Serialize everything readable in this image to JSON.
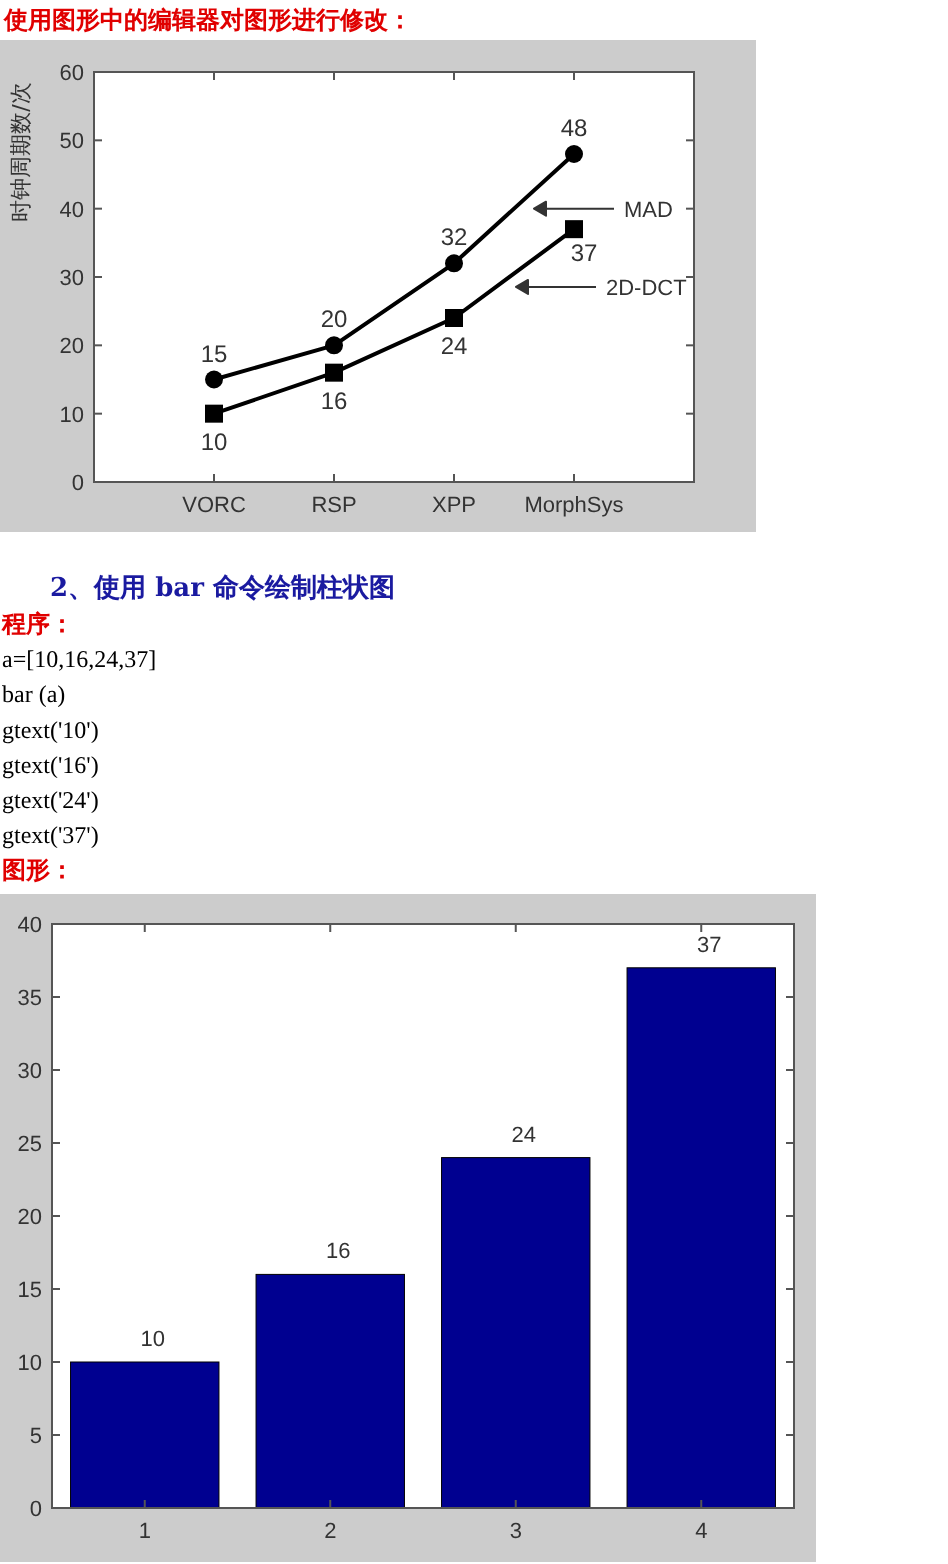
{
  "chart_data": [
    {
      "type": "line",
      "title": "使用图形中的编辑器对图形进行修改：",
      "ylabel": "时钟周期数/次",
      "categories": [
        "VORC",
        "RSP",
        "XPP",
        "MorphSys"
      ],
      "series": [
        {
          "name": "MAD",
          "color": "#000000",
          "marker": "circle",
          "values": [
            15,
            20,
            32,
            48
          ]
        },
        {
          "name": "2D-DCT",
          "color": "#000000",
          "marker": "square",
          "values": [
            10,
            16,
            24,
            37
          ]
        }
      ],
      "ylim": [
        0,
        60
      ],
      "yticks": [
        0,
        10,
        20,
        30,
        40,
        50,
        60
      ],
      "data_labels": true,
      "legend": "right"
    },
    {
      "type": "bar",
      "title": "2、使用 bar 命令绘制柱状图",
      "annotations": [
        "程序：",
        "a=[10,16,24,37]",
        "bar (a)",
        "gtext('10')",
        "gtext('16')",
        "gtext('24')",
        "gtext('37')",
        "图形："
      ],
      "categories": [
        "1",
        "2",
        "3",
        "4"
      ],
      "values": [
        10,
        16,
        24,
        37
      ],
      "color": "#000090",
      "ylim": [
        0,
        40
      ],
      "yticks": [
        0,
        5,
        10,
        15,
        20,
        25,
        30,
        35,
        40
      ],
      "data_labels": true
    }
  ]
}
